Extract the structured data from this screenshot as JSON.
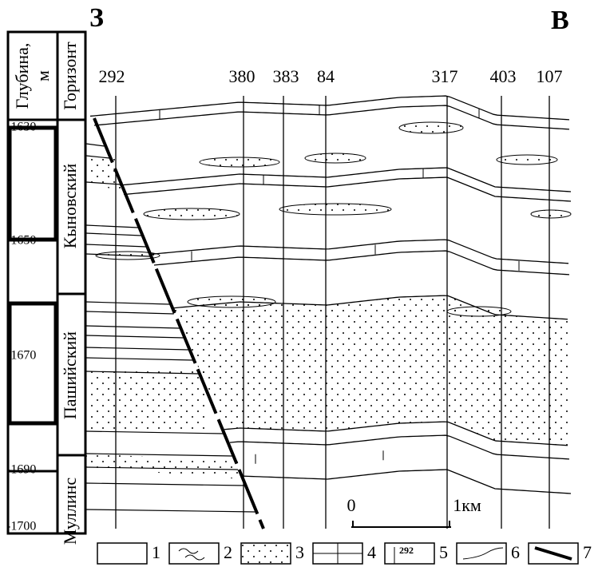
{
  "header": {
    "west": "З",
    "east": "В"
  },
  "depth_column": {
    "title": "Глубина,",
    "unit": "м",
    "labels": [
      "-1630",
      "-1650",
      "-1670",
      "-1690",
      "-1700"
    ]
  },
  "horizon_column": {
    "title": "Горизонт",
    "horizons": [
      "Кыновский",
      "Пашийский",
      "Муллинс"
    ]
  },
  "wells": [
    "292",
    "380",
    "383",
    "84",
    "317",
    "403",
    "107"
  ],
  "scale": {
    "start": "0",
    "end": "1км"
  },
  "legend": {
    "items": [
      "1",
      "2",
      "3",
      "4",
      "5",
      "6",
      "7"
    ],
    "well_sample": "292"
  }
}
